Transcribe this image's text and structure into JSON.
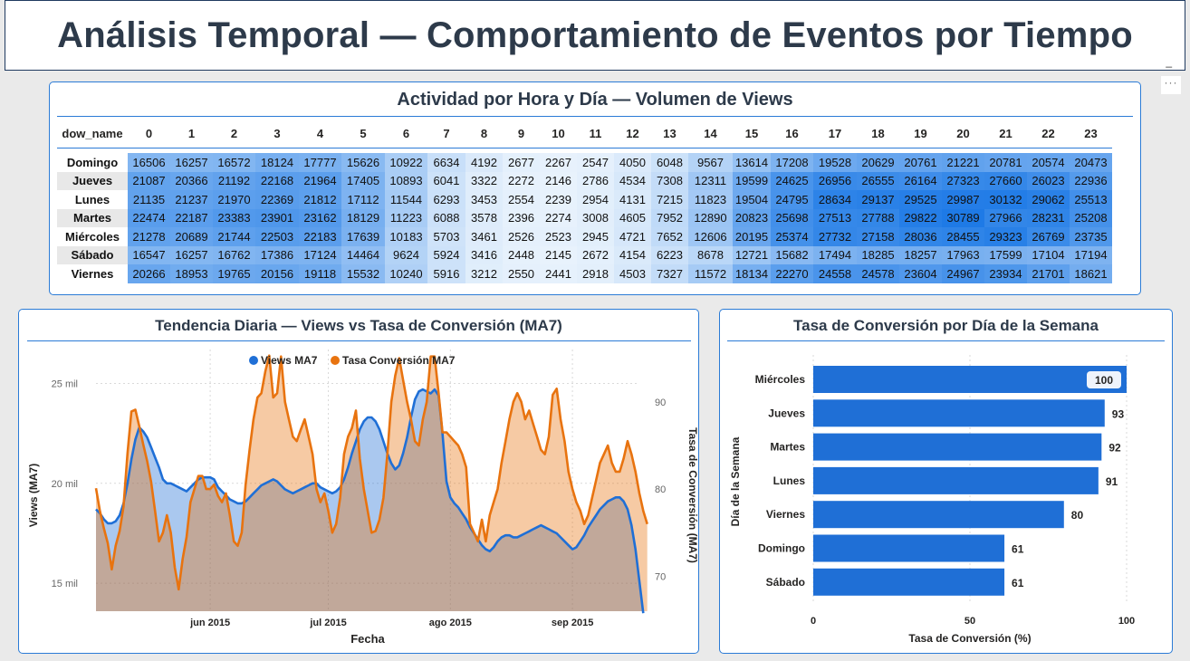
{
  "page": {
    "title": "Análisis Temporal — Comportamiento de Eventos por Tiempo",
    "minimize": "_",
    "more": "···"
  },
  "heatmap": {
    "title": "Actividad por Hora y Día — Volumen de Views",
    "row_header": "dow_name",
    "hours": [
      "0",
      "1",
      "2",
      "3",
      "4",
      "5",
      "6",
      "7",
      "8",
      "9",
      "10",
      "11",
      "12",
      "13",
      "14",
      "15",
      "16",
      "17",
      "18",
      "19",
      "20",
      "21",
      "22",
      "23"
    ],
    "rows": [
      {
        "day": "Domingo",
        "values": [
          16506,
          16257,
          16572,
          18124,
          17777,
          15626,
          10922,
          6634,
          4192,
          2677,
          2267,
          2547,
          4050,
          6048,
          9567,
          13614,
          17208,
          19528,
          20629,
          20761,
          21221,
          20781,
          20574,
          20473
        ]
      },
      {
        "day": "Jueves",
        "values": [
          21087,
          20366,
          21192,
          22168,
          21964,
          17405,
          10893,
          6041,
          3322,
          2272,
          2146,
          2786,
          4534,
          7308,
          12311,
          19599,
          24625,
          26956,
          26555,
          26164,
          27323,
          27660,
          26023,
          22936
        ]
      },
      {
        "day": "Lunes",
        "values": [
          21135,
          21237,
          21970,
          22369,
          21812,
          17112,
          11544,
          6293,
          3453,
          2554,
          2239,
          2954,
          4131,
          7215,
          11823,
          19504,
          24795,
          28634,
          29137,
          29525,
          29987,
          30132,
          29062,
          25513
        ]
      },
      {
        "day": "Martes",
        "values": [
          22474,
          22187,
          23383,
          23901,
          23162,
          18129,
          11223,
          6088,
          3578,
          2396,
          2274,
          3008,
          4605,
          7952,
          12890,
          20823,
          25698,
          27513,
          27788,
          29822,
          30789,
          27966,
          28231,
          25208
        ]
      },
      {
        "day": "Miércoles",
        "values": [
          21278,
          20689,
          21744,
          22503,
          22183,
          17639,
          10183,
          5703,
          3461,
          2526,
          2523,
          2945,
          4721,
          7652,
          12606,
          20195,
          25374,
          27732,
          27158,
          28036,
          28455,
          29323,
          26769,
          23735
        ]
      },
      {
        "day": "Sábado",
        "values": [
          16547,
          16257,
          16762,
          17386,
          17124,
          14464,
          9624,
          5924,
          3416,
          2448,
          2145,
          2672,
          4154,
          6223,
          8678,
          12721,
          15682,
          17494,
          18285,
          18257,
          17963,
          17599,
          17104,
          17194
        ]
      },
      {
        "day": "Viernes",
        "values": [
          20266,
          18953,
          19765,
          20156,
          19118,
          15532,
          10240,
          5916,
          3212,
          2550,
          2441,
          2918,
          4503,
          7327,
          11572,
          18134,
          22270,
          24558,
          24578,
          23604,
          24967,
          23934,
          21701,
          18621
        ]
      }
    ]
  },
  "trend": {
    "title": "Tendencia Diaria — Views vs Tasa de Conversión (MA7)",
    "legend": [
      "Views MA7",
      "Tasa Conversión MA7"
    ],
    "xlabel": "Fecha",
    "ylabel_left": "Views (MA7)",
    "ylabel_right": "Tasa de Conversión (MA7)"
  },
  "bars": {
    "title": "Tasa de Conversión por Día de la Semana",
    "xlabel": "Tasa de Conversión (%)",
    "ylabel": "Día de la Semana"
  },
  "chart_data": [
    {
      "type": "line",
      "title": "Tendencia Diaria — Views vs Tasa de Conversión (MA7)",
      "xlabel": "Fecha",
      "ylabel": "Views (MA7)",
      "y2label": "Tasa de Conversión (MA7)",
      "x_tick_labels": [
        "jun 2015",
        "jul 2015",
        "ago 2015",
        "sep 2015"
      ],
      "y_tick_labels": [
        "15 mil",
        "20 mil",
        "25 mil"
      ],
      "y2_tick_labels": [
        "70",
        "80",
        "90"
      ],
      "ylim": [
        13600,
        26700
      ],
      "y2lim": [
        66,
        96
      ],
      "x_start": "2015-05-03",
      "x_end": "2015-09-18",
      "series": [
        {
          "name": "Views MA7",
          "axis": "left",
          "color": "#1f6fd6",
          "x_start": "2015-05-03",
          "x_step_days": 1,
          "values": [
            18700,
            18500,
            18200,
            18000,
            18000,
            18100,
            18400,
            19000,
            20000,
            21200,
            22200,
            22800,
            22600,
            22300,
            21800,
            21300,
            20800,
            20200,
            20000,
            20000,
            19900,
            19800,
            19700,
            19600,
            19800,
            20000,
            20200,
            20300,
            20300,
            20300,
            20200,
            19800,
            19600,
            19400,
            19200,
            19100,
            19000,
            19000,
            19100,
            19300,
            19500,
            19700,
            19900,
            20000,
            20100,
            20200,
            20100,
            19900,
            19700,
            19600,
            19500,
            19600,
            19700,
            19800,
            19900,
            20000,
            20000,
            19800,
            19700,
            19600,
            19500,
            19600,
            19800,
            20200,
            20800,
            21500,
            22100,
            22700,
            23100,
            23300,
            23300,
            23100,
            22700,
            22100,
            21500,
            21000,
            20700,
            20900,
            21500,
            22300,
            23300,
            24200,
            24600,
            24700,
            24600,
            24500,
            24700,
            24400,
            22500,
            20100,
            19300,
            19000,
            18800,
            18500,
            18200,
            17800,
            17500,
            17200,
            16900,
            16700,
            16600,
            16800,
            17100,
            17300,
            17400,
            17400,
            17300,
            17300,
            17400,
            17500,
            17600,
            17700,
            17800,
            17900,
            17800,
            17700,
            17600,
            17500,
            17300,
            17100,
            16900,
            16700,
            16800,
            17100,
            17400,
            17800,
            18100,
            18400,
            18700,
            18900,
            19100,
            19200,
            19300,
            19300,
            19100,
            18700,
            17900,
            16700,
            15100,
            13500
          ]
        },
        {
          "name": "Tasa Conversión MA7",
          "axis": "right",
          "color": "#e8730f",
          "x_start": "2015-05-03",
          "x_step_days": 1,
          "values": [
            80.1,
            77.5,
            75.5,
            73.8,
            70.8,
            73.5,
            75.2,
            78.0,
            84.1,
            88.9,
            89.1,
            87.2,
            85.1,
            83.2,
            80.8,
            77.5,
            74.0,
            75.0,
            77.0,
            75.0,
            71.0,
            68.5,
            72.0,
            74.5,
            78.5,
            80.0,
            81.5,
            81.5,
            80.0,
            80.0,
            80.5,
            79.2,
            78.5,
            79.5,
            77.0,
            74.0,
            73.5,
            75.0,
            80.5,
            84.5,
            88.0,
            90.5,
            91.0,
            93.5,
            95.3,
            90.5,
            91.0,
            95.2,
            90.0,
            88.0,
            86.0,
            85.5,
            86.8,
            88.0,
            86.0,
            84.0,
            80.0,
            78.5,
            79.5,
            77.5,
            75.0,
            76.0,
            79.0,
            84.0,
            86.0,
            87.0,
            89.0,
            83.5,
            80.0,
            77.5,
            75.0,
            75.2,
            76.5,
            79.0,
            84.0,
            90.0,
            93.0,
            95.0,
            92.5,
            90.0,
            88.0,
            85.5,
            85.0,
            88.0,
            90.0,
            95.2,
            95.2,
            91.0,
            86.5,
            86.5,
            86.0,
            85.5,
            85.0,
            84.0,
            82.5,
            76.0,
            75.0,
            74.0,
            76.5,
            74.0,
            77.0,
            78.5,
            80.0,
            83.0,
            85.5,
            88.0,
            90.0,
            91.0,
            90.0,
            88.0,
            89.0,
            87.5,
            86.0,
            84.5,
            84.0,
            86.0,
            90.8,
            91.5,
            88.0,
            85.5,
            82.0,
            80.0,
            78.5,
            77.5,
            76.0,
            77.0,
            79.0,
            81.0,
            83.0,
            84.0,
            85.0,
            83.0,
            82.0,
            82.0,
            83.5,
            85.5,
            84.0,
            82.0,
            79.5,
            77.5,
            76.0
          ]
        }
      ]
    },
    {
      "type": "bar",
      "orientation": "horizontal",
      "title": "Tasa de Conversión por Día de la Semana",
      "xlabel": "Tasa de Conversión (%)",
      "ylabel": "Día de la Semana",
      "categories": [
        "Miércoles",
        "Jueves",
        "Martes",
        "Lunes",
        "Viernes",
        "Domingo",
        "Sábado"
      ],
      "values": [
        100,
        93,
        92,
        91,
        80,
        61,
        61
      ],
      "xlim": [
        0,
        100
      ],
      "x_tick_labels": [
        "0",
        "50",
        "100"
      ],
      "color": "#1f6fd6"
    }
  ]
}
